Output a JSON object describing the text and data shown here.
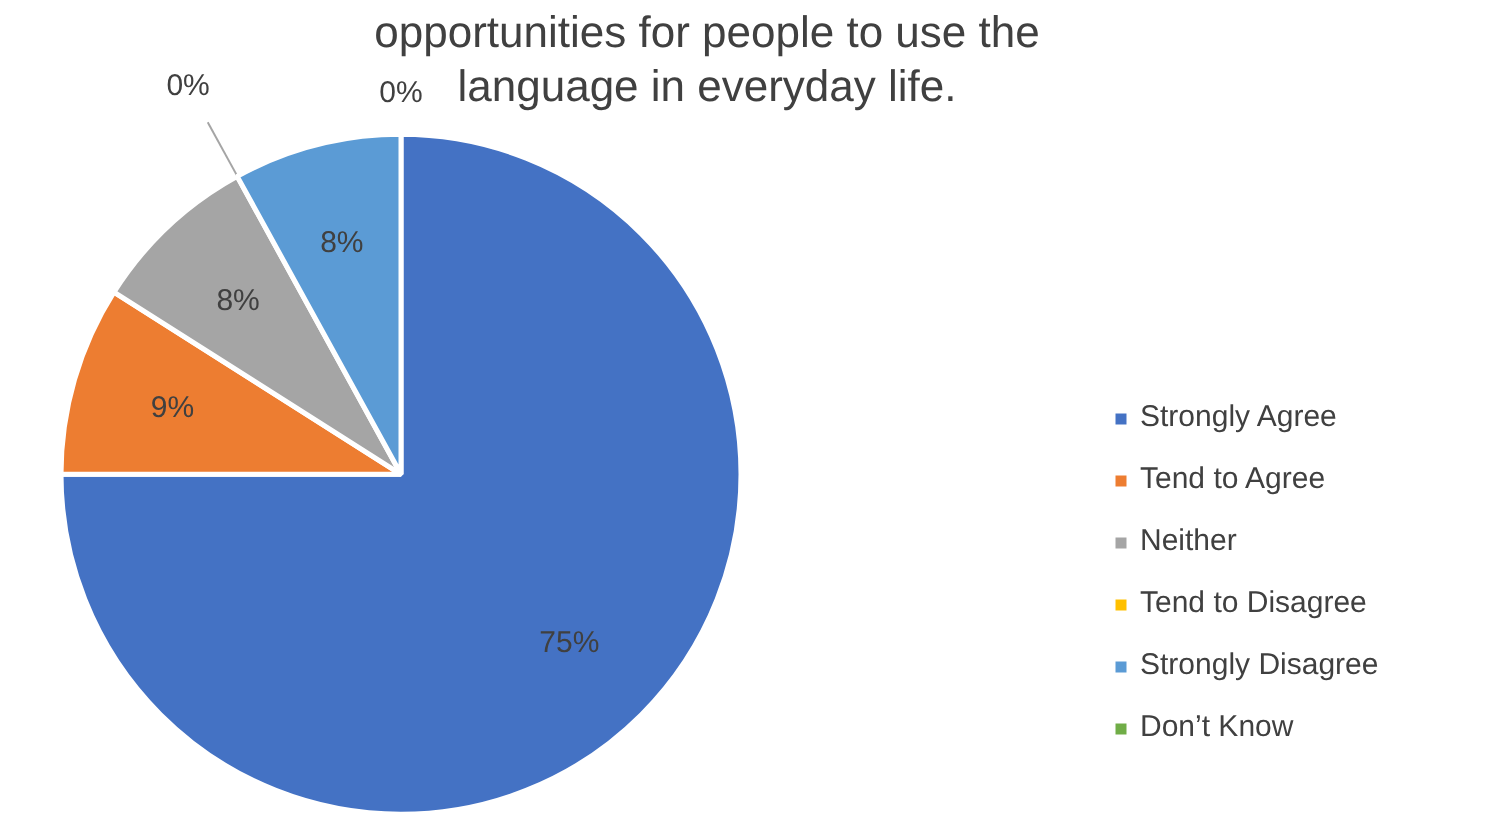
{
  "chart_data": {
    "type": "pie",
    "title": "opportunities for people to use the language in everyday life.",
    "categories": [
      "Strongly Agree",
      "Tend to Agree",
      "Neither",
      "Tend to Disagree",
      "Strongly Disagree",
      "Don’t Know"
    ],
    "values": [
      75,
      9,
      8,
      0,
      8,
      0
    ],
    "colors": [
      "#4472c4",
      "#ed7d31",
      "#a5a5a5",
      "#ffc000",
      "#5b9bd5",
      "#70ad47"
    ],
    "value_labels": [
      "75%",
      "9%",
      "8%",
      "0%",
      "8%",
      "0%"
    ],
    "legend": "right"
  }
}
